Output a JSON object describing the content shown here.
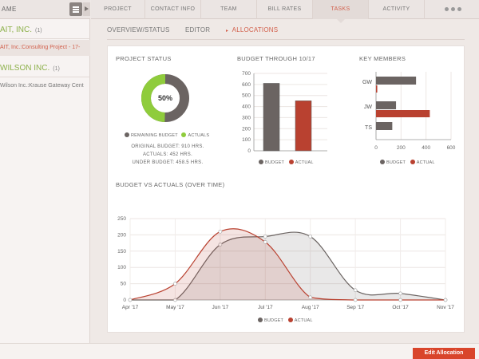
{
  "colors": {
    "accent": "#d2604c",
    "green": "#8db14b",
    "gray": "#6b6462",
    "red": "#b94130",
    "button": "#d9452b"
  },
  "sidebar": {
    "header_label": "AME",
    "clients": [
      {
        "name": "AIT, INC.",
        "count": "(1)"
      },
      {
        "name": "WILSON INC.",
        "count": "(1)"
      }
    ],
    "projects": [
      {
        "label": "AIT, Inc.:Consulting Project - 17-"
      },
      {
        "label": "Wilson Inc.:Krause Gateway Cent"
      }
    ]
  },
  "tabs": [
    "PROJECT",
    "CONTACT INFO",
    "TEAM",
    "BILL RATES",
    "TASKS",
    "ACTIVITY"
  ],
  "active_tab": "TASKS",
  "sub_tabs": [
    "OVERVIEW/STATUS",
    "EDITOR",
    "ALLOCATIONS"
  ],
  "project_status": {
    "title": "PROJECT STATUS",
    "percent_label": "50%",
    "percent": 50,
    "legend": {
      "remaining": "REMAINING BUDGET",
      "actuals": "ACTUALS"
    },
    "lines": [
      "ORIGINAL BUDGET: 910 HRS.",
      "ACTUALS: 452 HRS.",
      "UNDER BUDGET: 458.5 HRS."
    ]
  },
  "legend_labels": {
    "budget": "BUDGET",
    "actual": "ACTUAL"
  },
  "budget_chart": {
    "title": "BUDGET THROUGH 10/17"
  },
  "members_chart": {
    "title": "KEY MEMBERS"
  },
  "timeline_chart": {
    "title": "BUDGET VS ACTUALS (OVER TIME)"
  },
  "chart_data": [
    {
      "type": "pie",
      "categories": [
        "Remaining Budget",
        "Actuals"
      ],
      "values": [
        458.5,
        452
      ],
      "title": "PROJECT STATUS"
    },
    {
      "type": "bar",
      "title": "BUDGET THROUGH 10/17",
      "categories": [
        ""
      ],
      "series": [
        {
          "name": "BUDGET",
          "values": [
            610
          ]
        },
        {
          "name": "ACTUAL",
          "values": [
            452
          ]
        }
      ],
      "yticks": [
        0,
        100,
        200,
        300,
        400,
        500,
        600,
        700
      ],
      "ylim": [
        0,
        700
      ],
      "grid": true,
      "legend": "bottom"
    },
    {
      "type": "bar",
      "orientation": "horizontal",
      "title": "KEY MEMBERS",
      "categories": [
        "GW",
        "JW",
        "TS"
      ],
      "series": [
        {
          "name": "BUDGET",
          "values": [
            320,
            160,
            130
          ]
        },
        {
          "name": "ACTUAL",
          "values": [
            10,
            430,
            0
          ]
        }
      ],
      "xticks": [
        0,
        200,
        400,
        600
      ],
      "xlim": [
        0,
        600
      ],
      "grid": true,
      "legend": "bottom"
    },
    {
      "type": "area",
      "title": "BUDGET VS ACTUALS (OVER TIME)",
      "x": [
        "Apr '17",
        "May '17",
        "Jun '17",
        "Jul '17",
        "Aug '17",
        "Sep '17",
        "Oct '17",
        "Nov '17"
      ],
      "series": [
        {
          "name": "BUDGET",
          "values": [
            0,
            0,
            170,
            195,
            195,
            30,
            20,
            0
          ]
        },
        {
          "name": "ACTUAL",
          "values": [
            0,
            50,
            210,
            178,
            8,
            0,
            0,
            0
          ]
        }
      ],
      "yticks": [
        0,
        50,
        100,
        150,
        200,
        250
      ],
      "ylim": [
        0,
        250
      ],
      "grid": true,
      "legend": "bottom"
    }
  ],
  "footer": {
    "edit_button": "Edit Allocation"
  }
}
